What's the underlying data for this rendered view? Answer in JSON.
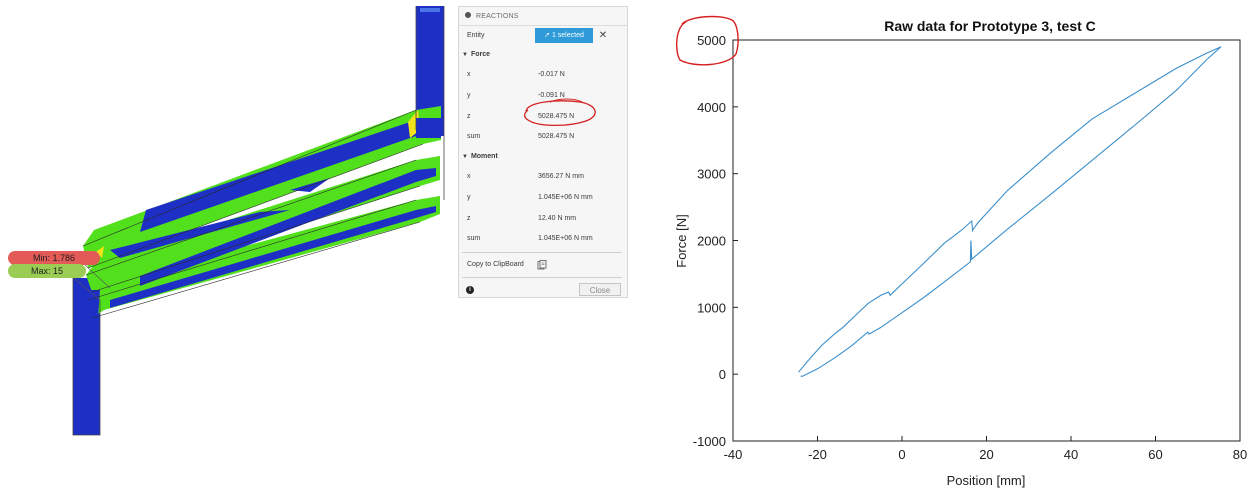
{
  "legend": {
    "min_label": "Min: 1.786",
    "max_label": "Max: 15"
  },
  "reactions_panel": {
    "title": "REACTIONS",
    "entity_label": "Entity",
    "entity_button": "1 selected",
    "clear_icon": "close-icon",
    "force_section": "Force",
    "force": [
      {
        "label": "x",
        "value": "-0.017 N"
      },
      {
        "label": "y",
        "value": "-0.091 N"
      },
      {
        "label": "z",
        "value": "5028.475 N"
      },
      {
        "label": "sum",
        "value": "5028.475 N"
      }
    ],
    "moment_section": "Moment",
    "moment": [
      {
        "label": "x",
        "value": "3656.27 N mm"
      },
      {
        "label": "y",
        "value": "1.045E+06 N mm"
      },
      {
        "label": "z",
        "value": "12.40 N mm"
      },
      {
        "label": "sum",
        "value": "1.045E+06 N mm"
      }
    ],
    "copy_label": "Copy to ClipBoard",
    "close_label": "Close",
    "info_glyph": "i",
    "annotation_color": "#d42020"
  },
  "colors": {
    "safety_blue": "#1e2fc6",
    "safety_green": "#53e01c",
    "safety_yellow": "#f3e21a",
    "accent_blue": "#2f9bd8",
    "curve": "#3b8fcc"
  },
  "chart_data": {
    "type": "line",
    "title": "Raw data for Prototype 3, test C",
    "xlabel": "Position [mm]",
    "ylabel": "Force [N]",
    "xlim": [
      -40,
      80
    ],
    "ylim": [
      -1000,
      5000
    ],
    "xticks": [
      -40,
      -20,
      0,
      20,
      40,
      60,
      80
    ],
    "yticks": [
      -1000,
      0,
      1000,
      2000,
      3000,
      4000,
      5000
    ],
    "grid": false,
    "series": [
      {
        "x": [
          -24.5,
          -22,
          -19,
          -16,
          -14,
          -11,
          -8,
          -5,
          -3.2,
          -2.8,
          0,
          5,
          10,
          14,
          16.5,
          16.7,
          16.9,
          18,
          25,
          35,
          45,
          55,
          65,
          72,
          75.5,
          72,
          65,
          55,
          45,
          35,
          25,
          16.5,
          16.3,
          16.2,
          10,
          5,
          0,
          -5,
          -7.8,
          -8.1,
          -12,
          -16,
          -20,
          -23.5,
          -24
        ],
        "y": [
          30,
          220,
          430,
          600,
          700,
          880,
          1060,
          1180,
          1230,
          1180,
          1350,
          1650,
          1960,
          2150,
          2290,
          2150,
          2170,
          2270,
          2750,
          3300,
          3820,
          4200,
          4580,
          4800,
          4900,
          4700,
          4250,
          3720,
          3200,
          2680,
          2170,
          1720,
          2000,
          1680,
          1380,
          1140,
          920,
          700,
          600,
          630,
          420,
          240,
          80,
          -30,
          -30
        ]
      }
    ],
    "annotation": {
      "target": "ytick 5000",
      "shape": "hand-drawn circle",
      "color": "#d42020"
    }
  }
}
